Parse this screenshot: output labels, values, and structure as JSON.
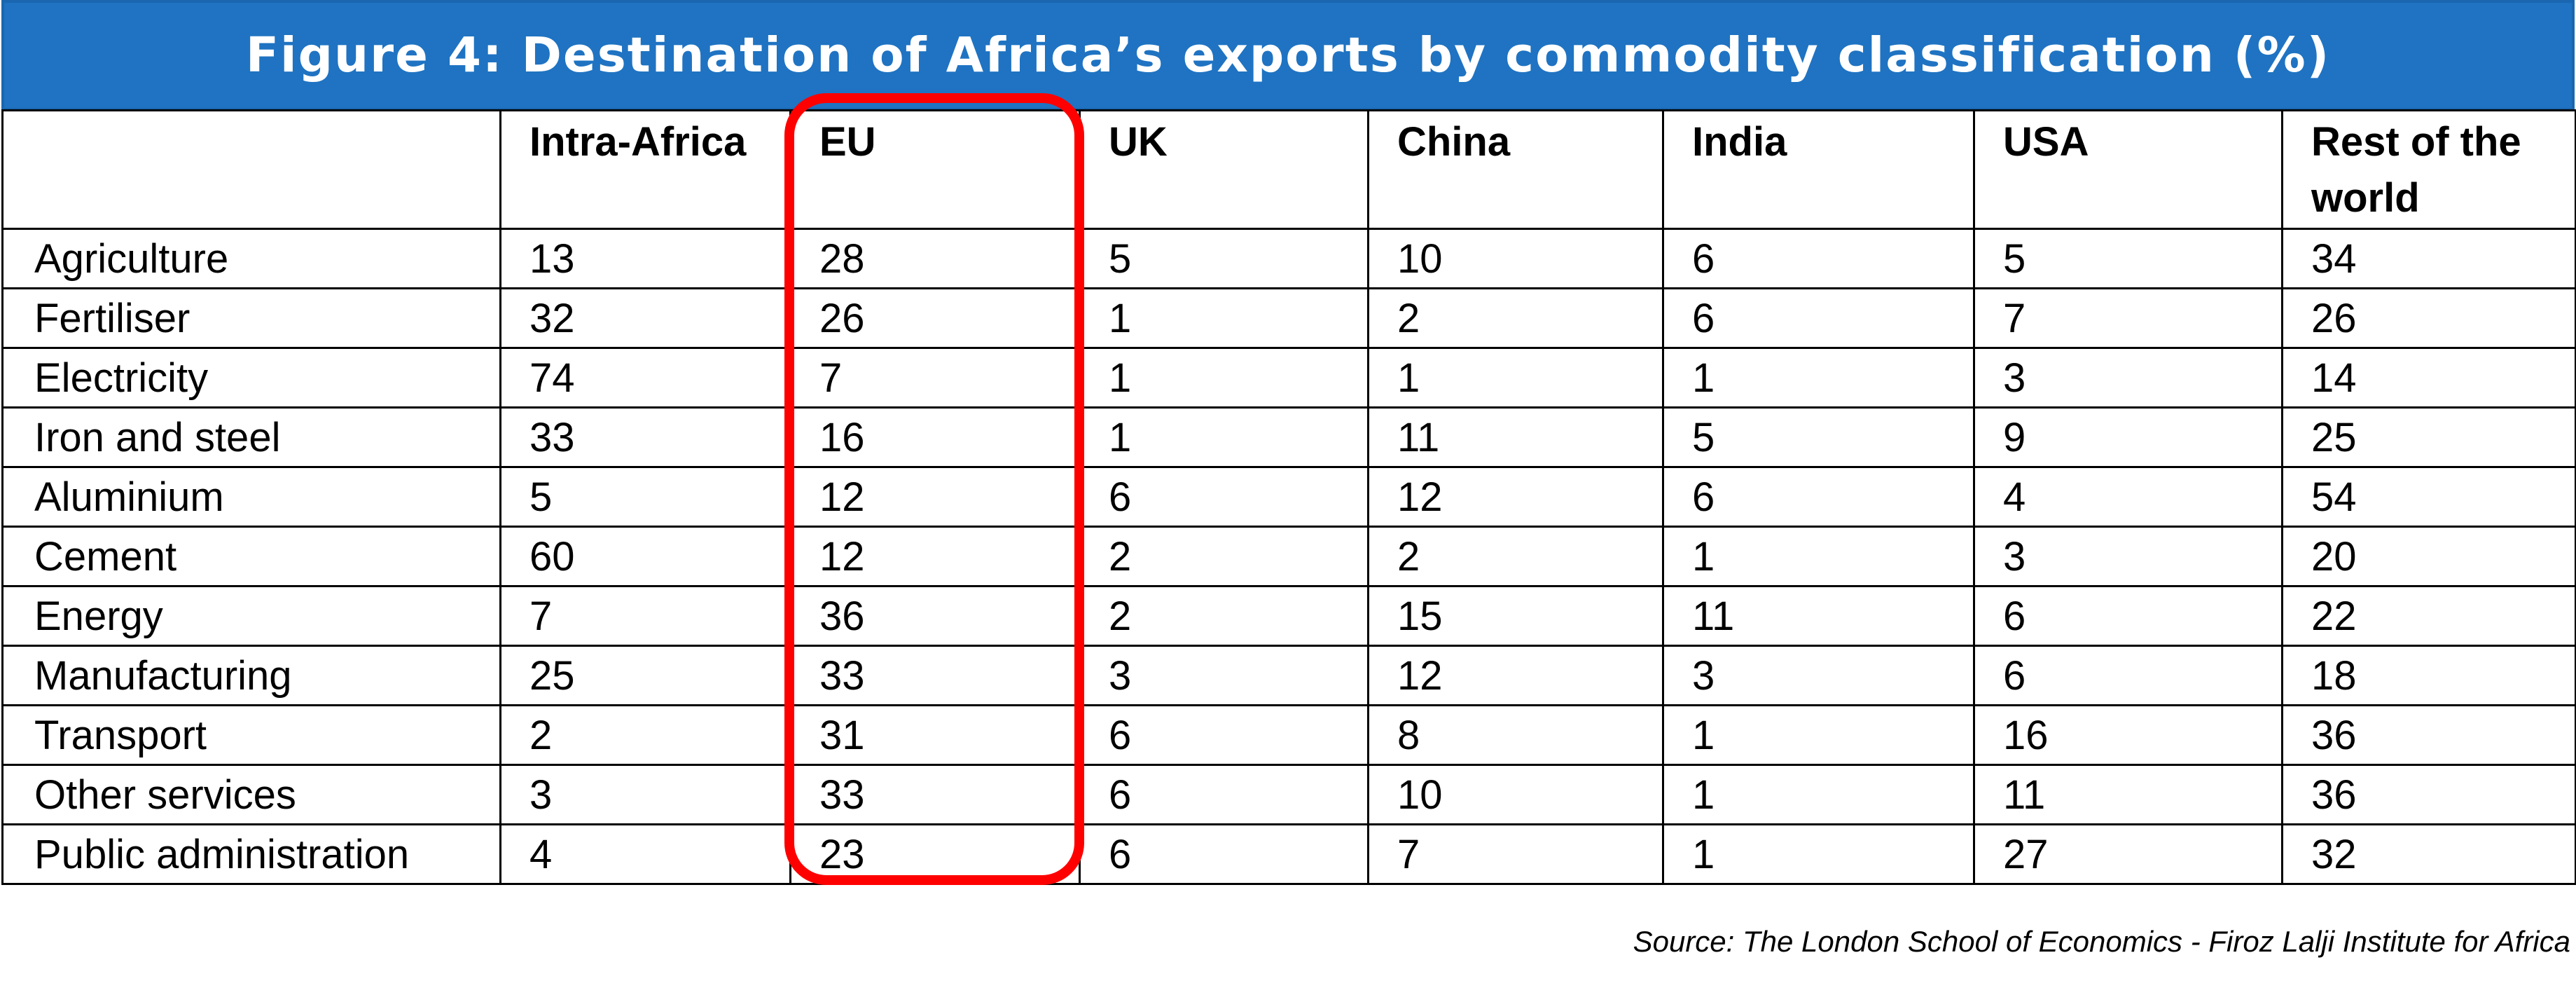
{
  "title": "Figure 4: Destination of Africa’s exports by commodity classification (%)",
  "columns": [
    "",
    "Intra-Africa",
    "EU",
    "UK",
    "China",
    "India",
    "USA",
    "Rest of the world"
  ],
  "rows": [
    {
      "label": "Agriculture",
      "values": [
        "13",
        "28",
        "5",
        "10",
        "6",
        "5",
        "34"
      ]
    },
    {
      "label": "Fertiliser",
      "values": [
        "32",
        "26",
        "1",
        "2",
        "6",
        "7",
        "26"
      ]
    },
    {
      "label": "Electricity",
      "values": [
        "74",
        "7",
        "1",
        "1",
        "1",
        "3",
        "14"
      ]
    },
    {
      "label": "Iron and steel",
      "values": [
        "33",
        "16",
        "1",
        "11",
        "5",
        "9",
        "25"
      ]
    },
    {
      "label": "Aluminium",
      "values": [
        "5",
        "12",
        "6",
        "12",
        "6",
        "4",
        "54"
      ]
    },
    {
      "label": "Cement",
      "values": [
        "60",
        "12",
        "2",
        "2",
        "1",
        "3",
        "20"
      ]
    },
    {
      "label": "Energy",
      "values": [
        "7",
        "36",
        "2",
        "15",
        "11",
        "6",
        "22"
      ]
    },
    {
      "label": "Manufacturing",
      "values": [
        "25",
        "33",
        "3",
        "12",
        "3",
        "6",
        "18"
      ]
    },
    {
      "label": "Transport",
      "values": [
        "2",
        "31",
        "6",
        "8",
        "1",
        "16",
        "36"
      ]
    },
    {
      "label": "Other services",
      "values": [
        "3",
        "33",
        "6",
        "10",
        "1",
        "11",
        "36"
      ]
    },
    {
      "label": "Public administration",
      "values": [
        "4",
        "23",
        "6",
        "7",
        "1",
        "27",
        "32"
      ]
    }
  ],
  "highlight_color": "#ff0000",
  "title_bar_color": "#1f73c2",
  "source": "Source: The London School of Economics - Firoz Lalji Institute for Africa"
}
